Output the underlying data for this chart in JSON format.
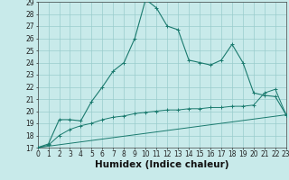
{
  "xlabel": "Humidex (Indice chaleur)",
  "xlim": [
    0,
    23
  ],
  "ylim": [
    17,
    29
  ],
  "yticks": [
    17,
    18,
    19,
    20,
    21,
    22,
    23,
    24,
    25,
    26,
    27,
    28,
    29
  ],
  "xticks": [
    0,
    1,
    2,
    3,
    4,
    5,
    6,
    7,
    8,
    9,
    10,
    11,
    12,
    13,
    14,
    15,
    16,
    17,
    18,
    19,
    20,
    21,
    22,
    23
  ],
  "line1_x": [
    0,
    1,
    2,
    3,
    4,
    5,
    6,
    7,
    8,
    9,
    10,
    11,
    12,
    13,
    14,
    15,
    16,
    17,
    18,
    19,
    20,
    21,
    22,
    23
  ],
  "line1_y": [
    17.0,
    17.3,
    19.3,
    19.3,
    19.2,
    20.8,
    22.0,
    23.3,
    24.0,
    26.0,
    29.2,
    28.5,
    27.0,
    26.7,
    24.2,
    24.0,
    23.8,
    24.2,
    25.5,
    24.0,
    21.5,
    21.3,
    21.2,
    19.7
  ],
  "line2_x": [
    0,
    1,
    2,
    3,
    4,
    5,
    6,
    7,
    8,
    9,
    10,
    11,
    12,
    13,
    14,
    15,
    16,
    17,
    18,
    19,
    20,
    21,
    22,
    23
  ],
  "line2_y": [
    17.0,
    17.2,
    18.0,
    18.5,
    18.8,
    19.0,
    19.3,
    19.5,
    19.6,
    19.8,
    19.9,
    20.0,
    20.1,
    20.1,
    20.2,
    20.2,
    20.3,
    20.3,
    20.4,
    20.4,
    20.5,
    21.5,
    21.8,
    19.7
  ],
  "line3_x": [
    0,
    23
  ],
  "line3_y": [
    17.0,
    19.7
  ],
  "line_color": "#1a7a6e",
  "bg_color": "#c8eaea",
  "grid_color": "#99cccc",
  "tick_fontsize": 5.5,
  "xlabel_fontsize": 7.5
}
